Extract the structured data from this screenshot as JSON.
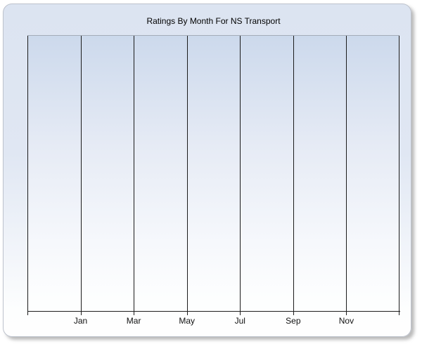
{
  "window": {
    "background_color": "#ffffff"
  },
  "chart": {
    "title": "Ratings By Month For NS Transport",
    "x_axis": {
      "labels": [
        "Jan",
        "Mar",
        "May",
        "Jul",
        "Sep",
        "Nov"
      ],
      "gridline_count": 8,
      "tick_count": 8
    },
    "y_axis": {
      "labels": []
    },
    "colors": {
      "panel_gradient_top": "#dce4f1",
      "panel_gradient_bottom": "#fefefe",
      "panel_border": "#bdc2cc",
      "plot_gradient_top": "#ccd9ec",
      "plot_gradient_bottom": "#fdfefe",
      "plot_top_border": "#a4acb8",
      "gridline": "#1c1c1c",
      "axis_line": "#1c1c1c",
      "title_color": "#000000",
      "label_color": "#111111",
      "shadow": "#828282"
    }
  },
  "chart_data": {
    "type": "line",
    "title": "Ratings By Month For NS Transport",
    "categories": [
      "Jan",
      "Mar",
      "May",
      "Jul",
      "Sep",
      "Nov"
    ],
    "series": [],
    "xlabel": "",
    "ylabel": "",
    "grid": "vertical gridlines only, 8 lines including plot edges",
    "legend": "none",
    "plot_empty": true
  }
}
